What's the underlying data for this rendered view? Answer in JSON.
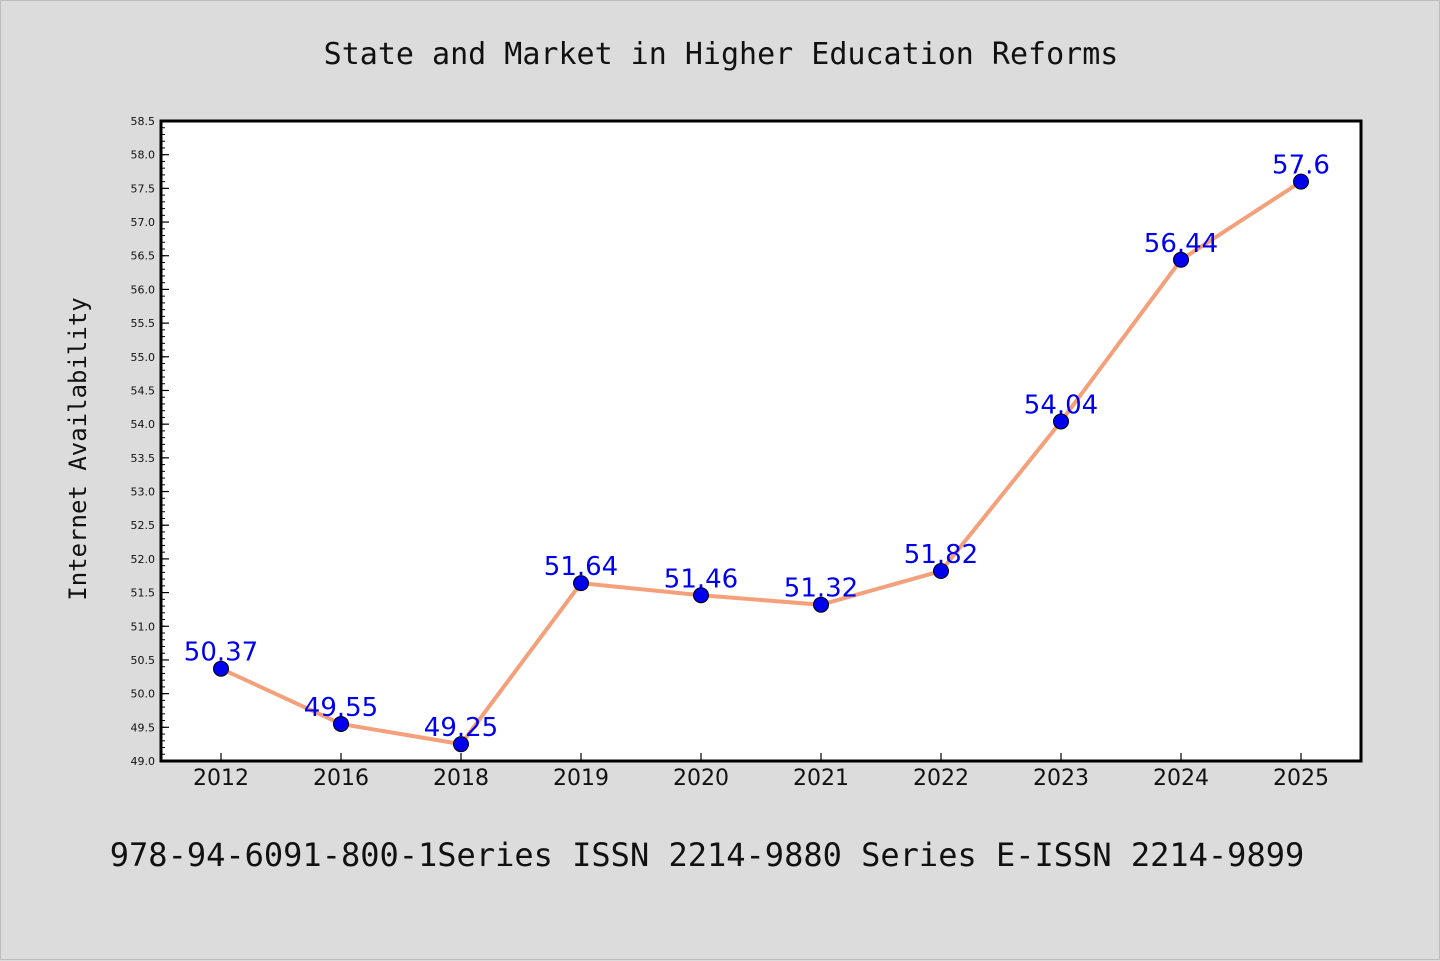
{
  "chart_data": {
    "type": "line",
    "title": "State and Market in Higher Education Reforms",
    "xlabel": "",
    "ylabel": "Internet Availability",
    "categories": [
      "2012",
      "2016",
      "2018",
      "2019",
      "2020",
      "2021",
      "2022",
      "2023",
      "2024",
      "2025"
    ],
    "series": [
      {
        "values": [
          50.37,
          49.55,
          49.25,
          51.64,
          51.46,
          51.32,
          51.82,
          54.04,
          56.44,
          57.6
        ],
        "data_labels": [
          "50.37",
          "49.55",
          "49.25",
          "51.64",
          "51.46",
          "51.32",
          "51.82",
          "54.04",
          "56.44",
          "57.6"
        ],
        "line_color": "#f4a07a",
        "marker_color": "#0000ee",
        "label_color": "#0000ee"
      }
    ],
    "ylim": [
      49.0,
      58.5
    ],
    "yticks": [
      "49.0",
      "49.5",
      "50.0",
      "50.5",
      "51.0",
      "51.5",
      "52.0",
      "52.5",
      "53.0",
      "53.5",
      "54.0",
      "54.5",
      "55.0",
      "55.5",
      "56.0",
      "56.5",
      "57.0",
      "57.5",
      "58.0",
      "58.5"
    ],
    "grid": false,
    "legend": "none"
  },
  "footer": "978-94-6091-800-1Series ISSN 2214-9880 Series E-ISSN 2214-9899",
  "colors": {
    "background": "#dcdcdc",
    "plot_background": "#ffffff"
  }
}
